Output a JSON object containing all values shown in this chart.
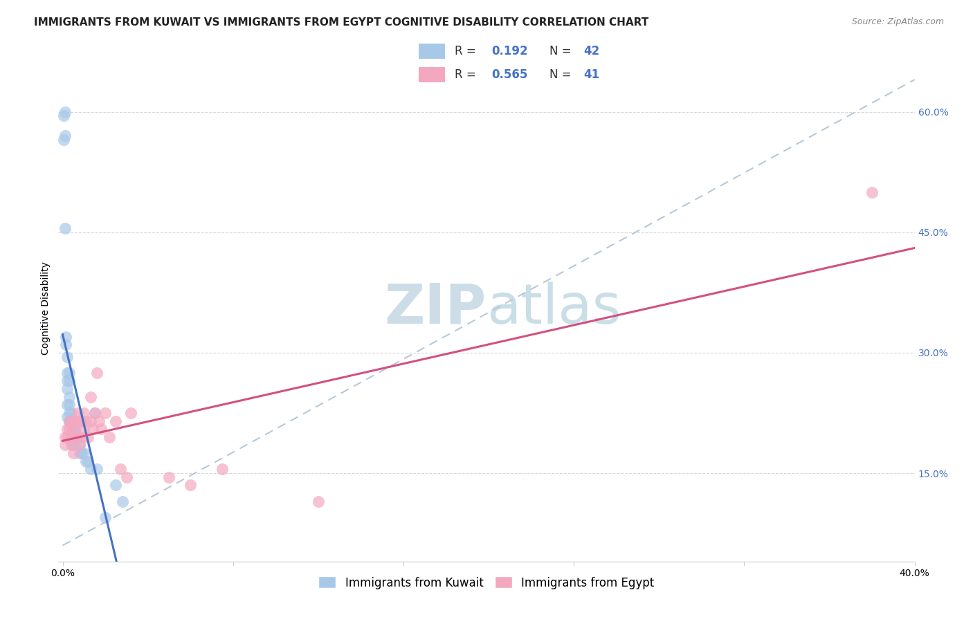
{
  "title": "IMMIGRANTS FROM KUWAIT VS IMMIGRANTS FROM EGYPT COGNITIVE DISABILITY CORRELATION CHART",
  "source": "Source: ZipAtlas.com",
  "ylabel": "Cognitive Disability",
  "y_ticks": [
    0.15,
    0.3,
    0.45,
    0.6
  ],
  "y_tick_labels": [
    "15.0%",
    "30.0%",
    "45.0%",
    "60.0%"
  ],
  "xlim": [
    -0.002,
    0.4
  ],
  "ylim": [
    0.04,
    0.67
  ],
  "kuwait_color": "#a8c8e8",
  "egypt_color": "#f4a8c0",
  "kuwait_line_color": "#4472c4",
  "egypt_line_color": "#d45080",
  "ref_line_color": "#b8c8d8",
  "watermark_color": "#ccdde8",
  "background_color": "#ffffff",
  "grid_color": "#d8d8d8",
  "kuwait_x": [
    0.0005,
    0.0005,
    0.001,
    0.001,
    0.001,
    0.0015,
    0.0015,
    0.002,
    0.002,
    0.002,
    0.002,
    0.002,
    0.002,
    0.003,
    0.003,
    0.003,
    0.003,
    0.003,
    0.003,
    0.004,
    0.004,
    0.004,
    0.004,
    0.005,
    0.005,
    0.005,
    0.005,
    0.006,
    0.006,
    0.007,
    0.008,
    0.008,
    0.009,
    0.01,
    0.011,
    0.012,
    0.013,
    0.015,
    0.016,
    0.02,
    0.025,
    0.028
  ],
  "kuwait_y": [
    0.595,
    0.565,
    0.6,
    0.57,
    0.455,
    0.32,
    0.31,
    0.295,
    0.275,
    0.265,
    0.255,
    0.235,
    0.22,
    0.275,
    0.265,
    0.245,
    0.235,
    0.225,
    0.215,
    0.225,
    0.215,
    0.2,
    0.19,
    0.215,
    0.205,
    0.195,
    0.185,
    0.205,
    0.195,
    0.195,
    0.185,
    0.175,
    0.175,
    0.175,
    0.165,
    0.165,
    0.155,
    0.225,
    0.155,
    0.095,
    0.135,
    0.115
  ],
  "egypt_x": [
    0.001,
    0.001,
    0.002,
    0.002,
    0.003,
    0.003,
    0.004,
    0.004,
    0.005,
    0.005,
    0.005,
    0.006,
    0.006,
    0.007,
    0.007,
    0.008,
    0.008,
    0.009,
    0.009,
    0.01,
    0.01,
    0.011,
    0.012,
    0.013,
    0.013,
    0.014,
    0.015,
    0.016,
    0.017,
    0.018,
    0.02,
    0.022,
    0.025,
    0.027,
    0.03,
    0.032,
    0.05,
    0.06,
    0.075,
    0.12,
    0.38
  ],
  "egypt_y": [
    0.195,
    0.185,
    0.205,
    0.195,
    0.215,
    0.205,
    0.195,
    0.185,
    0.215,
    0.205,
    0.175,
    0.215,
    0.195,
    0.225,
    0.195,
    0.215,
    0.185,
    0.215,
    0.195,
    0.225,
    0.205,
    0.215,
    0.195,
    0.245,
    0.215,
    0.205,
    0.225,
    0.275,
    0.215,
    0.205,
    0.225,
    0.195,
    0.215,
    0.155,
    0.145,
    0.225,
    0.145,
    0.135,
    0.155,
    0.115,
    0.5
  ],
  "title_fontsize": 11,
  "axis_fontsize": 10,
  "tick_color": "#4472c4"
}
